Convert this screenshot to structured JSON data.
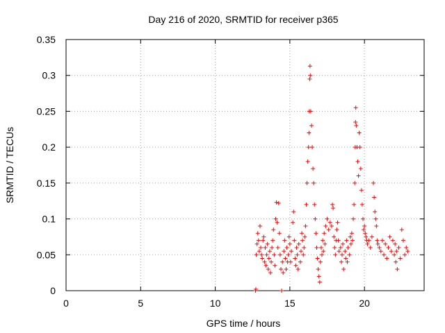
{
  "chart_data": {
    "type": "scatter",
    "title": "Day 216 of 2020, SRMTID for receiver p365",
    "xlabel": "GPS time / hours",
    "ylabel": "SRMTID / TECUs",
    "xlim": [
      0,
      24
    ],
    "ylim": [
      0,
      0.35
    ],
    "xticks": [
      0,
      5,
      10,
      15,
      20
    ],
    "xtick_labels": [
      "0",
      "5",
      "10",
      "15",
      "20"
    ],
    "yticks": [
      0,
      0.05,
      0.1,
      0.15,
      0.2,
      0.25,
      0.3,
      0.35
    ],
    "ytick_labels": [
      "0",
      "0.05",
      "0.1",
      "0.15",
      "0.2",
      "0.25",
      "0.3",
      "0.35"
    ],
    "grid": true,
    "marker": "+",
    "color": "#ff0000",
    "series": [
      {
        "name": "SRMTID",
        "points": [
          [
            12.7,
            0.0
          ],
          [
            12.72,
            0.002
          ],
          [
            12.75,
            0.05
          ],
          [
            12.8,
            0.065
          ],
          [
            12.85,
            0.08
          ],
          [
            12.9,
            0.07
          ],
          [
            12.95,
            0.055
          ],
          [
            13.0,
            0.09
          ],
          [
            13.05,
            0.06
          ],
          [
            13.1,
            0.05
          ],
          [
            13.15,
            0.045
          ],
          [
            13.2,
            0.07
          ],
          [
            13.25,
            0.075
          ],
          [
            13.3,
            0.04
          ],
          [
            13.35,
            0.06
          ],
          [
            13.4,
            0.035
          ],
          [
            13.45,
            0.05
          ],
          [
            13.5,
            0.065
          ],
          [
            13.55,
            0.03
          ],
          [
            13.6,
            0.045
          ],
          [
            13.65,
            0.055
          ],
          [
            13.7,
            0.025
          ],
          [
            13.75,
            0.04
          ],
          [
            13.8,
            0.06
          ],
          [
            13.85,
            0.07
          ],
          [
            13.9,
            0.085
          ],
          [
            13.95,
            0.05
          ],
          [
            14.0,
            0.035
          ],
          [
            14.05,
            0.1
          ],
          [
            14.1,
            0.123
          ],
          [
            14.15,
            0.095
          ],
          [
            14.2,
            0.06
          ],
          [
            14.25,
            0.122
          ],
          [
            14.3,
            0.08
          ],
          [
            14.35,
            0.05
          ],
          [
            14.4,
            0.03
          ],
          [
            14.45,
            0.0
          ],
          [
            14.5,
            0.04
          ],
          [
            14.55,
            0.025
          ],
          [
            14.6,
            0.055
          ],
          [
            14.65,
            0.07
          ],
          [
            14.7,
            0.045
          ],
          [
            14.75,
            0.03
          ],
          [
            14.8,
            0.06
          ],
          [
            14.85,
            0.04
          ],
          [
            14.9,
            0.05
          ],
          [
            14.95,
            0.075
          ],
          [
            15.0,
            0.065
          ],
          [
            15.05,
            0.04
          ],
          [
            15.1,
            0.055
          ],
          [
            15.2,
            0.095
          ],
          [
            15.25,
            0.11
          ],
          [
            15.3,
            0.07
          ],
          [
            15.35,
            0.045
          ],
          [
            15.4,
            0.035
          ],
          [
            15.45,
            0.06
          ],
          [
            15.5,
            0.05
          ],
          [
            15.55,
            0.03
          ],
          [
            15.6,
            0.065
          ],
          [
            15.7,
            0.04
          ],
          [
            15.75,
            0.055
          ],
          [
            15.8,
            0.08
          ],
          [
            15.85,
            0.07
          ],
          [
            15.9,
            0.05
          ],
          [
            15.95,
            0.06
          ],
          [
            16.0,
            0.075
          ],
          [
            16.05,
            0.09
          ],
          [
            16.1,
            0.12
          ],
          [
            16.15,
            0.15
          ],
          [
            16.2,
            0.18
          ],
          [
            16.25,
            0.2
          ],
          [
            16.28,
            0.22
          ],
          [
            16.3,
            0.25
          ],
          [
            16.33,
            0.295
          ],
          [
            16.35,
            0.313
          ],
          [
            16.37,
            0.3
          ],
          [
            16.4,
            0.25
          ],
          [
            16.45,
            0.23
          ],
          [
            16.5,
            0.2
          ],
          [
            16.55,
            0.17
          ],
          [
            16.6,
            0.15
          ],
          [
            16.65,
            0.12
          ],
          [
            16.7,
            0.1
          ],
          [
            16.75,
            0.08
          ],
          [
            16.8,
            0.06
          ],
          [
            16.85,
            0.045
          ],
          [
            16.9,
            0.03
          ],
          [
            16.95,
            0.02
          ],
          [
            17.0,
            0.012
          ],
          [
            17.05,
            0.04
          ],
          [
            17.1,
            0.06
          ],
          [
            17.15,
            0.05
          ],
          [
            17.2,
            0.07
          ],
          [
            17.25,
            0.055
          ],
          [
            17.3,
            0.08
          ],
          [
            17.35,
            0.065
          ],
          [
            17.4,
            0.09
          ],
          [
            17.5,
            0.1
          ],
          [
            17.6,
            0.085
          ],
          [
            17.7,
            0.095
          ],
          [
            17.8,
            0.09
          ],
          [
            17.85,
            0.12
          ],
          [
            17.9,
            0.115
          ],
          [
            17.95,
            0.075
          ],
          [
            18.0,
            0.06
          ],
          [
            18.05,
            0.05
          ],
          [
            18.1,
            0.07
          ],
          [
            18.15,
            0.085
          ],
          [
            18.2,
            0.095
          ],
          [
            18.25,
            0.07
          ],
          [
            18.3,
            0.055
          ],
          [
            18.4,
            0.06
          ],
          [
            18.45,
            0.04
          ],
          [
            18.5,
            0.05
          ],
          [
            18.55,
            0.065
          ],
          [
            18.6,
            0.03
          ],
          [
            18.7,
            0.055
          ],
          [
            18.75,
            0.045
          ],
          [
            18.8,
            0.07
          ],
          [
            18.85,
            0.04
          ],
          [
            18.9,
            0.06
          ],
          [
            19.0,
            0.05
          ],
          [
            19.05,
            0.075
          ],
          [
            19.1,
            0.065
          ],
          [
            19.15,
            0.08
          ],
          [
            19.2,
            0.07
          ],
          [
            19.25,
            0.1
          ],
          [
            19.3,
            0.12
          ],
          [
            19.35,
            0.15
          ],
          [
            19.38,
            0.2
          ],
          [
            19.4,
            0.235
          ],
          [
            19.42,
            0.255
          ],
          [
            19.45,
            0.23
          ],
          [
            19.5,
            0.2
          ],
          [
            19.55,
            0.18
          ],
          [
            19.6,
            0.16
          ],
          [
            19.65,
            0.22
          ],
          [
            19.7,
            0.2
          ],
          [
            19.75,
            0.17
          ],
          [
            19.8,
            0.14
          ],
          [
            19.85,
            0.12
          ],
          [
            19.9,
            0.1
          ],
          [
            19.95,
            0.085
          ],
          [
            20.0,
            0.09
          ],
          [
            20.05,
            0.08
          ],
          [
            20.1,
            0.075
          ],
          [
            20.15,
            0.07
          ],
          [
            20.2,
            0.065
          ],
          [
            20.3,
            0.07
          ],
          [
            20.4,
            0.06
          ],
          [
            20.5,
            0.075
          ],
          [
            20.6,
            0.15
          ],
          [
            20.65,
            0.13
          ],
          [
            20.7,
            0.11
          ],
          [
            20.75,
            0.1
          ],
          [
            20.8,
            0.09
          ],
          [
            20.85,
            0.07
          ],
          [
            20.9,
            0.065
          ],
          [
            21.0,
            0.06
          ],
          [
            21.1,
            0.055
          ],
          [
            21.2,
            0.07
          ],
          [
            21.3,
            0.05
          ],
          [
            21.4,
            0.065
          ],
          [
            21.5,
            0.045
          ],
          [
            21.6,
            0.06
          ],
          [
            21.7,
            0.075
          ],
          [
            21.8,
            0.055
          ],
          [
            21.9,
            0.07
          ],
          [
            22.0,
            0.05
          ],
          [
            22.05,
            0.065
          ],
          [
            22.1,
            0.04
          ],
          [
            22.15,
            0.055
          ],
          [
            22.2,
            0.03
          ],
          [
            22.3,
            0.06
          ],
          [
            22.4,
            0.045
          ],
          [
            22.5,
            0.085
          ],
          [
            22.6,
            0.07
          ],
          [
            22.7,
            0.05
          ],
          [
            22.8,
            0.06
          ],
          [
            22.9,
            0.055
          ]
        ]
      }
    ]
  }
}
